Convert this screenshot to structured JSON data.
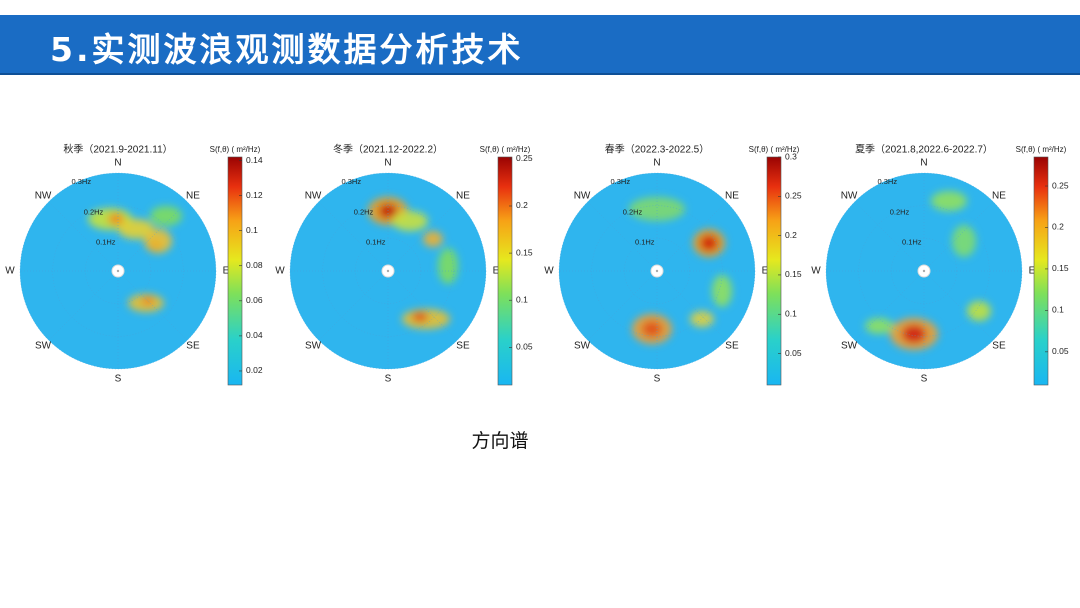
{
  "header": {
    "title": "5.实测波浪观测数据分析技术"
  },
  "caption": "方向谱",
  "chart_data": [
    {
      "type": "polar-heatmap",
      "title": "秋季（2021.9-2021.11）",
      "colorbar_label": "S(f,θ) ( m²/Hz)",
      "directions": [
        "N",
        "NE",
        "E",
        "SE",
        "S",
        "SW",
        "W",
        "NW"
      ],
      "rlim": [
        0,
        0.3
      ],
      "rticks": [
        {
          "value": 0.3,
          "label": "0.3Hz"
        },
        {
          "value": 0.2,
          "label": "0.2Hz"
        },
        {
          "value": 0.1,
          "label": "0.1Hz"
        }
      ],
      "clim": [
        0.012,
        0.142
      ],
      "cticks": [
        0.02,
        0.04,
        0.06,
        0.08,
        0.1,
        0.12,
        0.14
      ]
    },
    {
      "type": "polar-heatmap",
      "title": "冬季（2021.12-2022.2）",
      "colorbar_label": "S(f,θ) ( m²/Hz)",
      "directions": [
        "N",
        "NE",
        "E",
        "SE",
        "S",
        "SW",
        "W",
        "NW"
      ],
      "rlim": [
        0,
        0.3
      ],
      "rticks": [
        {
          "value": 0.3,
          "label": "0.3Hz"
        },
        {
          "value": 0.2,
          "label": "0.2Hz"
        },
        {
          "value": 0.1,
          "label": "0.1Hz"
        }
      ],
      "clim": [
        0.01,
        0.252
      ],
      "cticks": [
        0.05,
        0.1,
        0.15,
        0.2,
        0.25
      ]
    },
    {
      "type": "polar-heatmap",
      "title": "春季（2022.3-2022.5）",
      "colorbar_label": "S(f,θ) ( m²/Hz)",
      "directions": [
        "N",
        "NE",
        "E",
        "SE",
        "S",
        "SW",
        "W",
        "NW"
      ],
      "rlim": [
        0,
        0.3
      ],
      "rticks": [
        {
          "value": 0.3,
          "label": "0.3Hz"
        },
        {
          "value": 0.2,
          "label": "0.2Hz"
        },
        {
          "value": 0.1,
          "label": "0.1Hz"
        }
      ],
      "clim": [
        0.01,
        0.3
      ],
      "cticks": [
        0.05,
        0.1,
        0.15,
        0.2,
        0.25,
        0.3
      ]
    },
    {
      "type": "polar-heatmap",
      "title": "夏季（2021.8,2022.6-2022.7）",
      "colorbar_label": "S(f,θ) ( m²/Hz)",
      "directions": [
        "N",
        "NE",
        "E",
        "SE",
        "S",
        "SW",
        "W",
        "NW"
      ],
      "rlim": [
        0,
        0.3
      ],
      "rticks": [
        {
          "value": 0.3,
          "label": "0.3Hz"
        },
        {
          "value": 0.2,
          "label": "0.2Hz"
        },
        {
          "value": 0.1,
          "label": "0.1Hz"
        }
      ],
      "clim": [
        0.01,
        0.285
      ],
      "cticks": [
        0.05,
        0.1,
        0.15,
        0.2,
        0.25
      ]
    }
  ]
}
